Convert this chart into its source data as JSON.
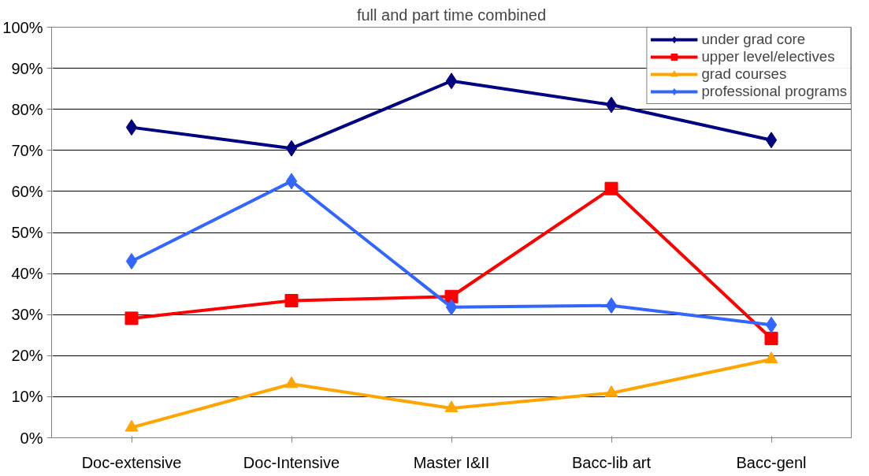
{
  "chart_data": {
    "type": "line",
    "title": "full and part time combined",
    "categories": [
      "Doc-extensive",
      "Doc-Intensive",
      "Master I&II",
      "Bacc-lib art",
      "Bacc-genl"
    ],
    "series": [
      {
        "name": "under grad core",
        "color": "#000080",
        "marker": "diamond",
        "values": [
          75.6,
          70.5,
          86.9,
          81.1,
          72.5
        ]
      },
      {
        "name": "upper level/electives",
        "color": "#ff0000",
        "marker": "square",
        "values": [
          29.1,
          33.4,
          34.4,
          60.7,
          24.2
        ]
      },
      {
        "name": "grad courses",
        "color": "#ffa500",
        "marker": "triangle",
        "values": [
          2.5,
          13.1,
          7.2,
          10.9,
          19.1
        ]
      },
      {
        "name": "professional programs",
        "color": "#3366ff",
        "marker": "diamond",
        "values": [
          43,
          62.5,
          31.8,
          32.2,
          27.5
        ]
      }
    ],
    "ylim": [
      0,
      100
    ],
    "yticks": [
      {
        "value": 0,
        "label": "0%"
      },
      {
        "value": 10,
        "label": "10%"
      },
      {
        "value": 20,
        "label": "20%"
      },
      {
        "value": 30,
        "label": "30%"
      },
      {
        "value": 40,
        "label": "40%"
      },
      {
        "value": 50,
        "label": "50%"
      },
      {
        "value": 60,
        "label": "60%"
      },
      {
        "value": 70,
        "label": "70%"
      },
      {
        "value": 80,
        "label": "80%"
      },
      {
        "value": 90,
        "label": "90%"
      },
      {
        "value": 100,
        "label": "100%"
      }
    ],
    "grid": "y",
    "legend": "top right"
  }
}
